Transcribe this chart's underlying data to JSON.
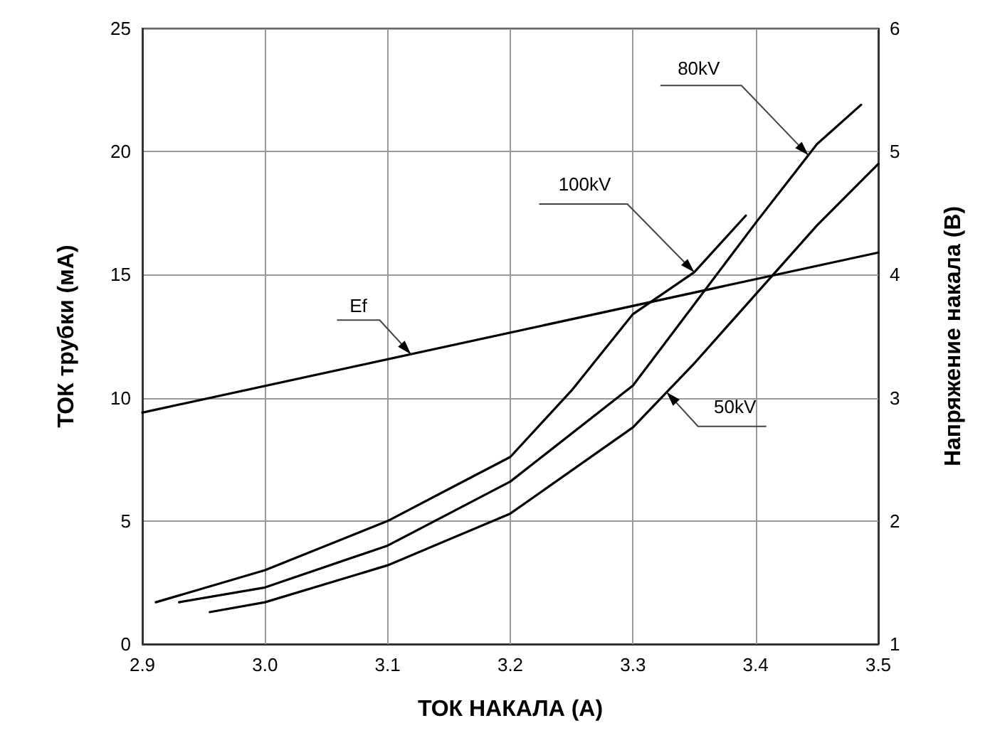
{
  "chart_data": {
    "type": "line",
    "xlabel": "ТОК НАКАЛА (А)",
    "ylabel": "ТОК трубки (мА)",
    "y2label": "Напряжение накала (В)",
    "xlim": [
      2.9,
      3.5
    ],
    "xticks": [
      2.9,
      {
        "value": 3,
        "label": "3.0"
      },
      3.1,
      3.2,
      3.3,
      3.4,
      3.5
    ],
    "ylim": [
      0,
      25
    ],
    "yticks": [
      0,
      5,
      10,
      15,
      20,
      25
    ],
    "y2lim": [
      1,
      6
    ],
    "y2ticks": [
      1,
      2,
      3,
      4,
      5,
      6
    ],
    "grid": true,
    "marker": "none",
    "line_style": "solid",
    "series": [
      {
        "name": "Ef",
        "color": "#000000",
        "axis": "y2",
        "x": [
          2.9,
          3.5
        ],
        "values": [
          2.88,
          4.18
        ]
      },
      {
        "name": "100kV",
        "color": "#000000",
        "x": [
          2.911,
          3.0,
          3.1,
          3.15,
          3.2,
          3.25,
          3.3,
          3.35,
          3.392
        ],
        "values": [
          1.7,
          3.0,
          5.0,
          6.3,
          7.6,
          10.3,
          13.4,
          15.1,
          17.4
        ]
      },
      {
        "name": "80kV",
        "color": "#000000",
        "x": [
          2.93,
          3.0,
          3.1,
          3.2,
          3.3,
          3.35,
          3.4,
          3.45,
          3.486
        ],
        "values": [
          1.7,
          2.3,
          4.0,
          6.6,
          10.5,
          13.8,
          17.1,
          20.3,
          21.9
        ]
      },
      {
        "name": "50kV",
        "color": "#000000",
        "x": [
          2.955,
          3.0,
          3.1,
          3.2,
          3.3,
          3.35,
          3.4,
          3.45,
          3.5
        ],
        "values": [
          1.3,
          1.7,
          3.2,
          5.3,
          8.8,
          11.4,
          14.2,
          17.0,
          19.5
        ]
      }
    ]
  }
}
